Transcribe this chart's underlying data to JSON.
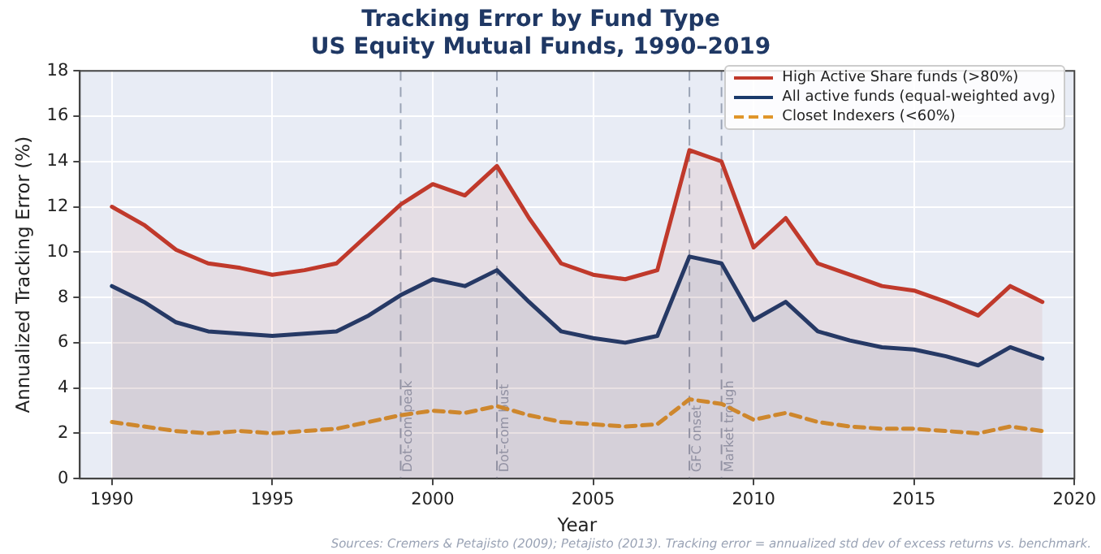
{
  "chart_data": {
    "type": "line",
    "title": "Tracking Error by Fund Type",
    "subtitle": "US Equity Mutual Funds, 1990–2019",
    "xlabel": "Year",
    "ylabel": "Annualized Tracking Error (%)",
    "x": [
      1990,
      1991,
      1992,
      1993,
      1994,
      1995,
      1996,
      1997,
      1998,
      1999,
      2000,
      2001,
      2002,
      2003,
      2004,
      2005,
      2006,
      2007,
      2008,
      2009,
      2010,
      2011,
      2012,
      2013,
      2014,
      2015,
      2016,
      2017,
      2018,
      2019
    ],
    "series": [
      {
        "name": "High Active Share funds (>80%)",
        "type": "area",
        "color": "#c0392b",
        "values": [
          12.0,
          11.2,
          10.1,
          9.5,
          9.3,
          9.0,
          9.2,
          9.5,
          10.8,
          12.1,
          13.0,
          12.5,
          13.8,
          11.5,
          9.5,
          9.0,
          8.8,
          9.2,
          14.5,
          14.0,
          10.2,
          11.5,
          9.5,
          9.0,
          8.5,
          8.3,
          7.8,
          7.2,
          8.5,
          7.8
        ]
      },
      {
        "name": "All active funds (equal-weighted avg)",
        "type": "area",
        "color": "#1a3a6b",
        "values": [
          8.5,
          7.8,
          6.9,
          6.5,
          6.4,
          6.3,
          6.4,
          6.5,
          7.2,
          8.1,
          8.8,
          8.5,
          9.2,
          7.8,
          6.5,
          6.2,
          6.0,
          6.3,
          9.8,
          9.5,
          7.0,
          7.8,
          6.5,
          6.1,
          5.8,
          5.7,
          5.4,
          5.0,
          5.8,
          5.3
        ]
      },
      {
        "name": "Closet Indexers (<60%)",
        "type": "line",
        "line_style": "dashed",
        "color": "#e0962a",
        "values": [
          2.5,
          2.3,
          2.1,
          2.0,
          2.1,
          2.0,
          2.1,
          2.2,
          2.5,
          2.8,
          3.0,
          2.9,
          3.2,
          2.8,
          2.5,
          2.4,
          2.3,
          2.4,
          3.5,
          3.3,
          2.6,
          2.9,
          2.5,
          2.3,
          2.2,
          2.2,
          2.1,
          2.0,
          2.3,
          2.1
        ]
      }
    ],
    "xlim": [
      1989,
      2020
    ],
    "xticks": [
      1990,
      1995,
      2000,
      2005,
      2010,
      2015,
      2020
    ],
    "ylim": [
      0,
      18
    ],
    "yticks": [
      0,
      2,
      4,
      6,
      8,
      10,
      12,
      14,
      16,
      18
    ],
    "grid": true,
    "legend": "top right",
    "marker": "none",
    "ref_lines": [
      {
        "axis": "x",
        "value": 1999,
        "label": "Dot-com peak",
        "color": "#9aa3b5",
        "line_style": "dashed"
      },
      {
        "axis": "x",
        "value": 2002,
        "label": "Dot-com bust",
        "color": "#9aa3b5",
        "line_style": "dashed"
      },
      {
        "axis": "x",
        "value": 2008,
        "label": "GFC onset",
        "color": "#9aa3b5",
        "line_style": "dashed"
      },
      {
        "axis": "x",
        "value": 2009,
        "label": "Market trough",
        "color": "#9aa3b5",
        "line_style": "dashed"
      }
    ],
    "annotations": [
      "Sources: Cremers & Petajisto (2009); Petajisto (2013). Tracking error = annualized std dev of excess returns vs. benchmark."
    ]
  }
}
